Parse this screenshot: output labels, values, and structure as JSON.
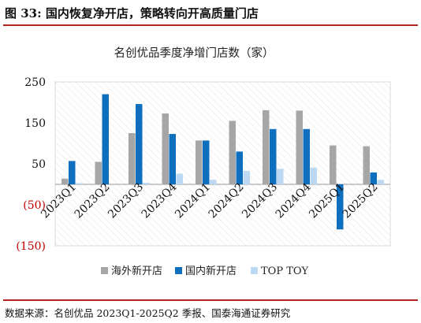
{
  "header": {
    "title": "图 33:  国内恢复净开店，策略转向开高质量门店"
  },
  "footer": {
    "source": "数据来源：名创优品 2023Q1-2025Q2 季报、国泰海通证券研究"
  },
  "colors": {
    "rule": "#b3231f",
    "overseas": "#a6a6a6",
    "domestic": "#0f6fbf",
    "toptoy": "#bcd8f3",
    "negative_label": "#c00000"
  },
  "chart_data": {
    "type": "bar",
    "title": "名创优品季度净增门店数（家）",
    "categories": [
      "2023Q1",
      "2023Q2",
      "2023Q3",
      "2023Q4",
      "2024Q1",
      "2024Q2",
      "2024Q3",
      "2024Q4",
      "2025Q1",
      "2025Q2"
    ],
    "series": [
      {
        "name": "海外新开店",
        "values": [
          14,
          55,
          125,
          173,
          107,
          155,
          181,
          180,
          95,
          93
        ]
      },
      {
        "name": "国内新开店",
        "values": [
          57,
          220,
          196,
          123,
          107,
          80,
          135,
          135,
          -110,
          29
        ]
      },
      {
        "name": "TOP TOY",
        "values": [
          3,
          0,
          4,
          26,
          11,
          33,
          38,
          41,
          0,
          11
        ]
      }
    ],
    "ylim": [
      -150,
      250
    ],
    "yticks": [
      -150,
      -50,
      50,
      150,
      250
    ],
    "ytick_labels": [
      "(150)",
      "(50)",
      "50",
      "150",
      "250"
    ],
    "xlabel": "",
    "ylabel": "",
    "grid": false,
    "background_pattern": "diagonal-hatch",
    "legend_position": "bottom"
  }
}
